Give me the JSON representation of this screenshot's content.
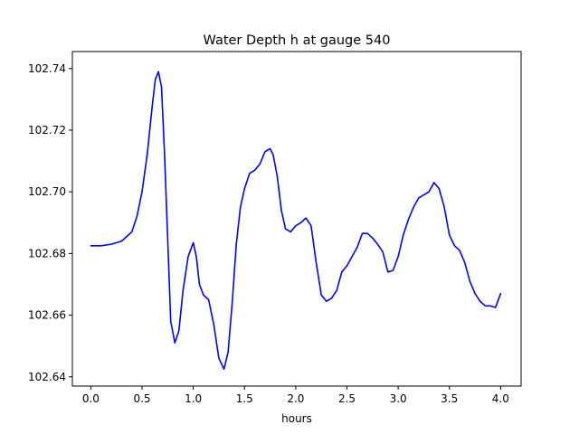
{
  "chart_data": {
    "type": "line",
    "title": "Water Depth h at gauge 540",
    "xlabel": "hours",
    "ylabel": "",
    "xlim": [
      -0.18,
      4.2
    ],
    "ylim": [
      102.637,
      102.7455
    ],
    "grid": false,
    "x_ticks": [
      0.0,
      0.5,
      1.0,
      1.5,
      2.0,
      2.5,
      3.0,
      3.5,
      4.0
    ],
    "x_tick_labels": [
      "0.0",
      "0.5",
      "1.0",
      "1.5",
      "2.0",
      "2.5",
      "3.0",
      "3.5",
      "4.0"
    ],
    "y_ticks": [
      102.64,
      102.66,
      102.68,
      102.7,
      102.72,
      102.74
    ],
    "y_tick_labels": [
      "102.64",
      "102.66",
      "102.68",
      "102.70",
      "102.72",
      "102.74"
    ],
    "series": [
      {
        "color": "#0000ff",
        "x": [
          0.0,
          0.1,
          0.2,
          0.3,
          0.4,
          0.45,
          0.5,
          0.55,
          0.6,
          0.63,
          0.66,
          0.69,
          0.72,
          0.75,
          0.78,
          0.82,
          0.86,
          0.9,
          0.95,
          1.0,
          1.03,
          1.06,
          1.1,
          1.15,
          1.2,
          1.25,
          1.3,
          1.34,
          1.38,
          1.42,
          1.46,
          1.5,
          1.55,
          1.6,
          1.65,
          1.7,
          1.75,
          1.78,
          1.82,
          1.86,
          1.9,
          1.95,
          2.0,
          2.05,
          2.1,
          2.15,
          2.2,
          2.25,
          2.3,
          2.35,
          2.4,
          2.45,
          2.5,
          2.55,
          2.6,
          2.65,
          2.7,
          2.75,
          2.8,
          2.85,
          2.9,
          2.95,
          3.0,
          3.05,
          3.1,
          3.15,
          3.2,
          3.25,
          3.3,
          3.35,
          3.4,
          3.45,
          3.5,
          3.55,
          3.6,
          3.65,
          3.7,
          3.75,
          3.8,
          3.85,
          3.9,
          3.95,
          4.0
        ],
        "y": [
          102.6825,
          102.6825,
          102.683,
          102.684,
          102.687,
          102.692,
          102.7,
          102.712,
          102.728,
          102.7365,
          102.739,
          102.734,
          102.712,
          102.685,
          102.658,
          102.651,
          102.655,
          102.668,
          102.679,
          102.6835,
          102.679,
          102.67,
          102.6665,
          102.665,
          102.657,
          102.646,
          102.6425,
          102.648,
          102.664,
          102.683,
          102.695,
          102.701,
          102.706,
          102.707,
          102.709,
          102.713,
          102.714,
          102.712,
          102.705,
          102.694,
          102.688,
          102.687,
          102.689,
          102.69,
          102.6915,
          102.689,
          102.677,
          102.6665,
          102.6645,
          102.6655,
          102.668,
          102.674,
          102.676,
          102.679,
          102.682,
          102.6865,
          102.6865,
          102.685,
          102.683,
          102.6805,
          102.674,
          102.6745,
          102.679,
          102.686,
          102.691,
          102.695,
          102.698,
          102.699,
          102.7,
          102.703,
          102.701,
          102.695,
          102.686,
          102.6825,
          102.681,
          102.677,
          102.671,
          102.667,
          102.6645,
          102.663,
          102.663,
          102.6625,
          102.667
        ]
      }
    ]
  }
}
